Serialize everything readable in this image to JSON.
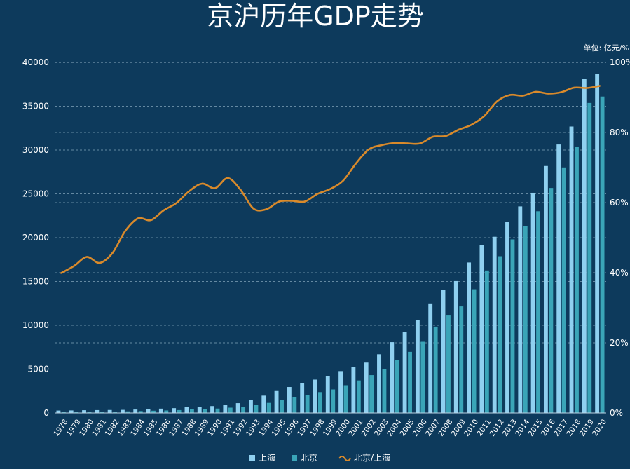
{
  "chart_data": {
    "type": "bar",
    "title": "京沪历年GDP走势",
    "unit_label": "单位: 亿元/%",
    "categories": [
      "1978",
      "1979",
      "1980",
      "1981",
      "1982",
      "1983",
      "1984",
      "1985",
      "1986",
      "1987",
      "1988",
      "1989",
      "1990",
      "1991",
      "1992",
      "1993",
      "1994",
      "1995",
      "1996",
      "1997",
      "1998",
      "1999",
      "2000",
      "2001",
      "2002",
      "2003",
      "2004",
      "2005",
      "2006",
      "2007",
      "2008",
      "2009",
      "2010",
      "2011",
      "2012",
      "2013",
      "2014",
      "2015",
      "2016",
      "2017",
      "2018",
      "2019",
      "2020"
    ],
    "left_axis": {
      "ticks": [
        "0",
        "5000",
        "10000",
        "15000",
        "20000",
        "25000",
        "30000",
        "35000",
        "40000"
      ],
      "ylim": [
        0,
        40000
      ]
    },
    "right_axis": {
      "ticks": [
        "0%",
        "20%",
        "40%",
        "60%",
        "80%",
        "100%"
      ],
      "ylim": [
        0,
        100
      ]
    },
    "grid": true,
    "legend_position": "bottom-center",
    "series": [
      {
        "name": "上海",
        "kind": "bar",
        "color": "#8fd0f0",
        "values": [
          273,
          286,
          312,
          325,
          337,
          352,
          391,
          467,
          491,
          546,
          648,
          697,
          782,
          894,
          1114,
          1520,
          1972,
          2499,
          2958,
          3439,
          3801,
          4189,
          4771,
          5210,
          5741,
          6694,
          8073,
          9248,
          10572,
          12494,
          14070,
          15046,
          17166,
          19196,
          20102,
          21818,
          23568,
          25123,
          28178,
          30633,
          32680,
          38155,
          38700
        ]
      },
      {
        "name": "北京",
        "kind": "bar",
        "color": "#3aa5b8",
        "values": [
          109,
          120,
          139,
          139,
          154,
          183,
          217,
          257,
          284,
          327,
          410,
          456,
          501,
          599,
          709,
          886,
          1145,
          1507,
          1789,
          2075,
          2376,
          2678,
          3162,
          3708,
          4315,
          5023,
          6060,
          6970,
          8118,
          9847,
          11115,
          12153,
          14114,
          16252,
          17879,
          19800,
          21331,
          23015,
          25669,
          28015,
          30320,
          35371,
          36102
        ]
      },
      {
        "name": "北京/上海",
        "kind": "line",
        "axis": "right",
        "color": "#d98a2b",
        "values": [
          39.9,
          41.9,
          44.5,
          42.8,
          45.6,
          51.9,
          55.5,
          55.0,
          57.8,
          59.9,
          63.3,
          65.4,
          64.1,
          67.0,
          63.6,
          58.3,
          58.1,
          60.3,
          60.5,
          60.3,
          62.5,
          63.9,
          66.3,
          71.2,
          75.2,
          76.4,
          77.0,
          76.9,
          76.9,
          78.8,
          79.0,
          80.8,
          82.2,
          84.7,
          88.9,
          90.7,
          90.5,
          91.6,
          91.1,
          91.5,
          92.8,
          92.7,
          93.3
        ]
      }
    ]
  }
}
